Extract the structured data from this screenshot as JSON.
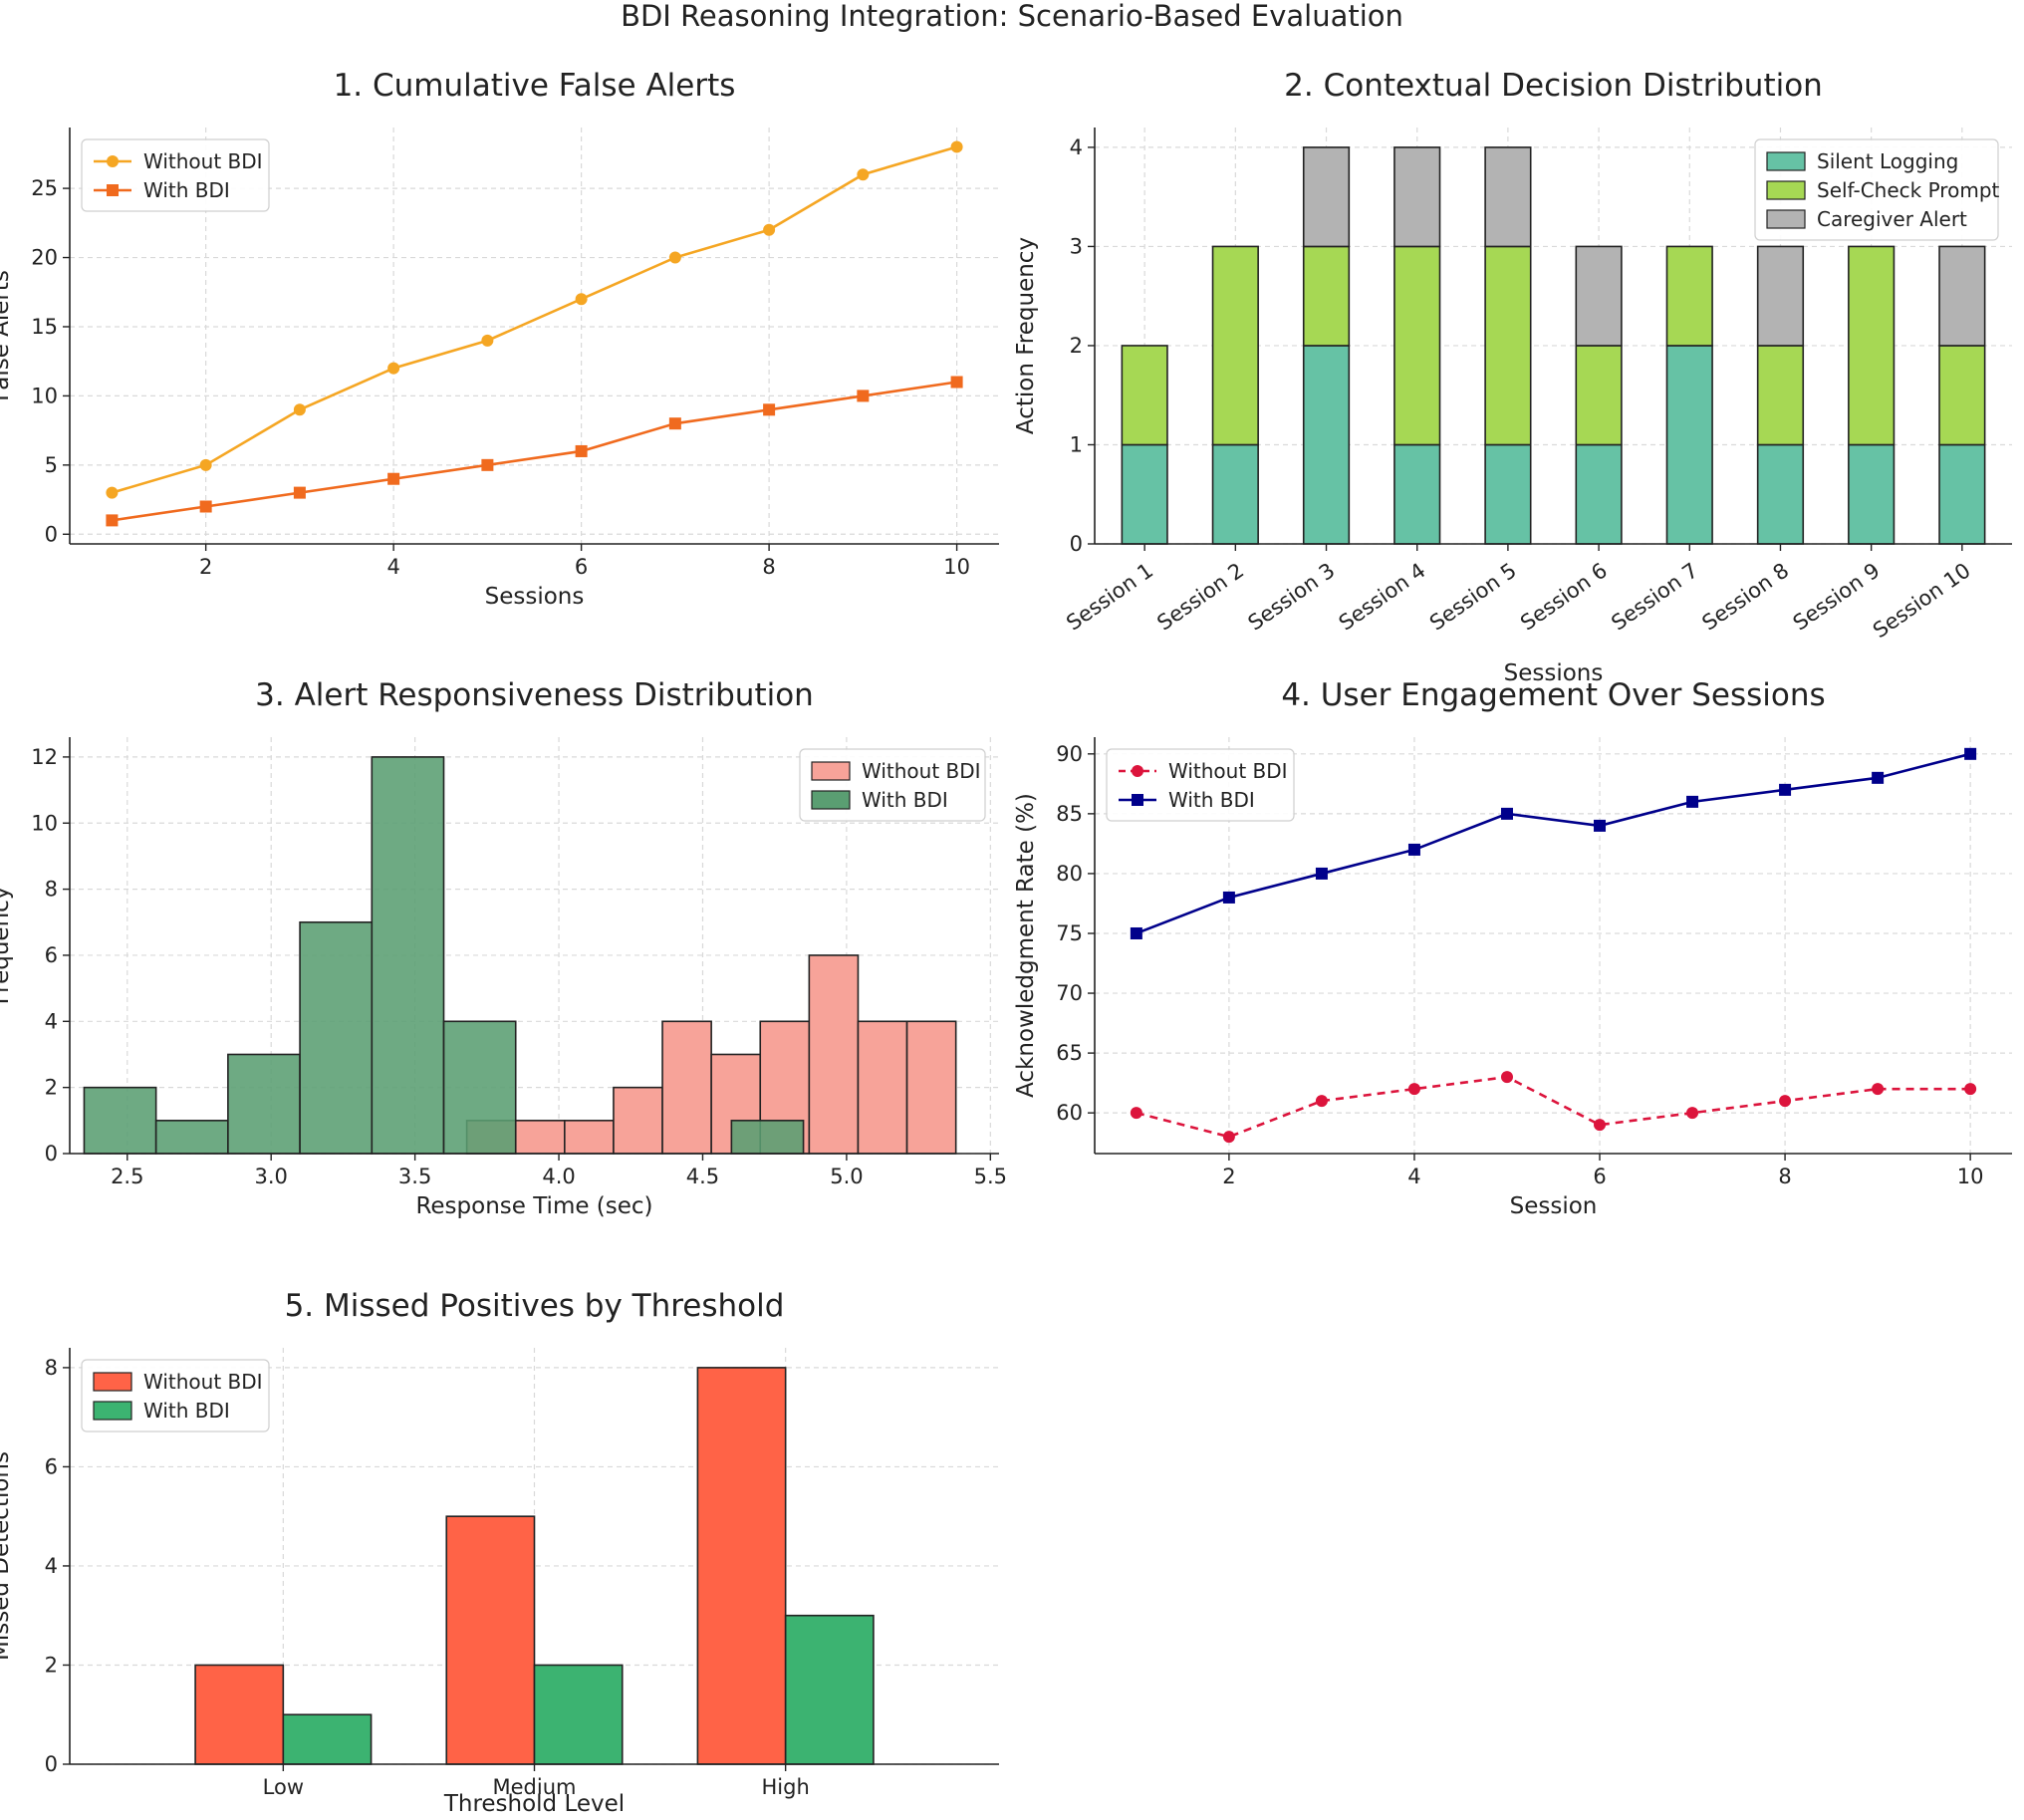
{
  "figure_title": "BDI Reasoning Integration: Scenario-Based Evaluation",
  "colors": {
    "without_bdi_line": "#f5a623",
    "with_bdi_line": "#f06a1e",
    "silent_logging": "#66c2a5",
    "self_check_prompt": "#a6d854",
    "caregiver_alert": "#b3b3b3",
    "hist_without": "#f7a399",
    "hist_with": "#5a9e72",
    "engage_without": "#dc143c",
    "engage_with": "#00008b",
    "missed_without": "#ff6347",
    "missed_with": "#3cb371"
  },
  "chart_data": [
    {
      "id": "p1",
      "type": "line",
      "title": "1. Cumulative False Alerts",
      "xlabel": "Sessions",
      "ylabel": "False Alerts",
      "xlim": [
        0.55,
        10.45
      ],
      "ylim": [
        -0.7,
        29.4
      ],
      "xticks": [
        2,
        4,
        6,
        8,
        10
      ],
      "yticks": [
        0,
        5,
        10,
        15,
        20,
        25
      ],
      "x": [
        1,
        2,
        3,
        4,
        5,
        6,
        7,
        8,
        9,
        10
      ],
      "series": [
        {
          "name": "Without BDI",
          "values": [
            3,
            5,
            9,
            12,
            14,
            17,
            20,
            22,
            26,
            28
          ],
          "marker": "circle",
          "color": "#f5a623",
          "dash": false
        },
        {
          "name": "With BDI",
          "values": [
            1,
            2,
            3,
            4,
            5,
            6,
            8,
            9,
            10,
            11
          ],
          "marker": "square",
          "color": "#f06a1e",
          "dash": false
        }
      ],
      "legend": "top-left"
    },
    {
      "id": "p2",
      "type": "bar",
      "stacked": true,
      "title": "2. Contextual Decision Distribution",
      "xlabel": "Sessions",
      "ylabel": "Action Frequency",
      "ylim": [
        0,
        4.2
      ],
      "yticks": [
        0,
        1,
        2,
        3,
        4
      ],
      "categories": [
        "Session 1",
        "Session 2",
        "Session 3",
        "Session 4",
        "Session 5",
        "Session 6",
        "Session 7",
        "Session 8",
        "Session 9",
        "Session 10"
      ],
      "series": [
        {
          "name": "Silent Logging",
          "values": [
            1,
            1,
            2,
            1,
            1,
            1,
            2,
            1,
            1,
            1
          ],
          "color": "#66c2a5"
        },
        {
          "name": "Self-Check Prompt",
          "values": [
            1,
            2,
            1,
            2,
            2,
            1,
            1,
            1,
            2,
            1
          ],
          "color": "#a6d854"
        },
        {
          "name": "Caregiver Alert",
          "values": [
            0,
            0,
            1,
            1,
            1,
            1,
            0,
            1,
            0,
            1
          ],
          "color": "#b3b3b3"
        }
      ],
      "legend": "top-right"
    },
    {
      "id": "p3",
      "type": "histogram",
      "title": "3. Alert Responsiveness Distribution",
      "xlabel": "Response Time (sec)",
      "ylabel": "Frequency",
      "xlim": [
        2.3,
        5.53
      ],
      "ylim": [
        0,
        12.6
      ],
      "xticks": [
        "2.5",
        "3.0",
        "3.5",
        "4.0",
        "4.5",
        "5.0",
        "5.5"
      ],
      "yticks": [
        0,
        2,
        4,
        6,
        8,
        10,
        12
      ],
      "series": [
        {
          "name": "Without BDI",
          "color": "#f7a399",
          "bins": [
            [
              3.68,
              3.85,
              1
            ],
            [
              3.85,
              4.02,
              1
            ],
            [
              4.02,
              4.19,
              1
            ],
            [
              4.19,
              4.36,
              2
            ],
            [
              4.36,
              4.53,
              4
            ],
            [
              4.53,
              4.7,
              3
            ],
            [
              4.7,
              4.87,
              4
            ],
            [
              4.87,
              5.04,
              6
            ],
            [
              5.04,
              5.21,
              4
            ],
            [
              5.21,
              5.38,
              4
            ]
          ]
        },
        {
          "name": "With BDI",
          "color": "#5a9e72",
          "bins": [
            [
              2.35,
              2.6,
              2
            ],
            [
              2.6,
              2.85,
              1
            ],
            [
              2.85,
              3.1,
              3
            ],
            [
              3.1,
              3.35,
              7
            ],
            [
              3.35,
              3.6,
              12
            ],
            [
              3.6,
              3.85,
              4
            ],
            [
              3.85,
              4.1,
              0
            ],
            [
              4.1,
              4.35,
              0
            ],
            [
              4.35,
              4.6,
              0
            ],
            [
              4.6,
              4.85,
              1
            ]
          ]
        }
      ],
      "legend": "top-right"
    },
    {
      "id": "p4",
      "type": "line",
      "title": "4. User Engagement Over Sessions",
      "xlabel": "Session",
      "ylabel": "Acknowledgment Rate (%)",
      "xlim": [
        0.55,
        10.45
      ],
      "ylim": [
        56.6,
        91.4
      ],
      "xticks": [
        2,
        4,
        6,
        8,
        10
      ],
      "yticks": [
        60,
        65,
        70,
        75,
        80,
        85,
        90
      ],
      "x": [
        1,
        2,
        3,
        4,
        5,
        6,
        7,
        8,
        9,
        10
      ],
      "series": [
        {
          "name": "Without BDI",
          "values": [
            60,
            58,
            61,
            62,
            63,
            59,
            60,
            61,
            62,
            62
          ],
          "marker": "circle",
          "color": "#dc143c",
          "dash": true
        },
        {
          "name": "With BDI",
          "values": [
            75,
            78,
            80,
            82,
            85,
            84,
            86,
            87,
            88,
            90
          ],
          "marker": "square",
          "color": "#00008b",
          "dash": false
        }
      ],
      "legend": "top-left"
    },
    {
      "id": "p5",
      "type": "bar",
      "grouped": true,
      "title": "5. Missed Positives by Threshold",
      "xlabel": "Threshold Level",
      "ylabel": "Missed Detections",
      "ylim": [
        0,
        8.4
      ],
      "yticks": [
        0,
        2,
        4,
        6,
        8
      ],
      "categories": [
        "Low",
        "Medium",
        "High"
      ],
      "series": [
        {
          "name": "Without BDI",
          "values": [
            2,
            5,
            8
          ],
          "color": "#ff6347"
        },
        {
          "name": "With BDI",
          "values": [
            1,
            2,
            3
          ],
          "color": "#3cb371"
        }
      ],
      "legend": "top-left"
    }
  ]
}
